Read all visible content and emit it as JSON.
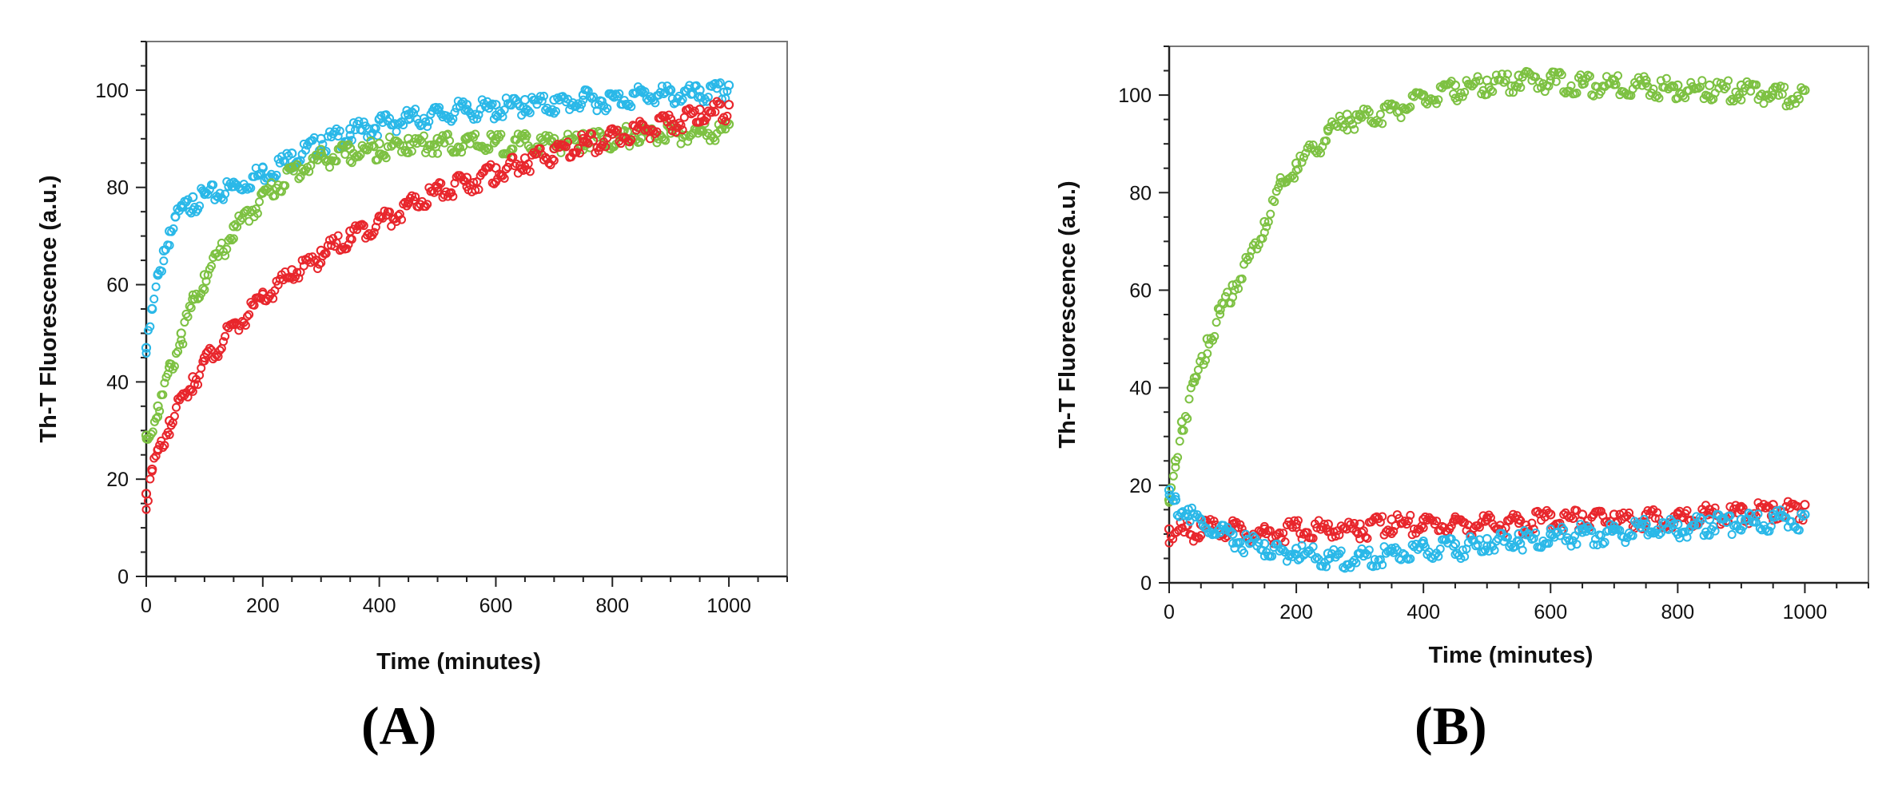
{
  "chart_data": [
    {
      "type": "scatter",
      "panel_label": "(A)",
      "xlabel": "Time (minutes)",
      "ylabel": "Th-T Fluorescence (a.u.)",
      "xlim": [
        0,
        1100
      ],
      "ylim": [
        0,
        110
      ],
      "xticks": [
        0,
        200,
        400,
        600,
        800,
        1000
      ],
      "yticks": [
        0,
        20,
        40,
        60,
        80,
        100
      ],
      "grid": false,
      "series": [
        {
          "color": "#2ab8e8",
          "x": [
            0,
            10,
            20,
            30,
            40,
            50,
            60,
            80,
            100,
            150,
            200,
            250,
            300,
            350,
            400,
            450,
            500,
            550,
            600,
            650,
            700,
            750,
            800,
            850,
            900,
            950,
            1000
          ],
          "y": [
            47,
            55,
            62,
            67,
            71,
            74,
            76,
            78,
            79,
            81,
            84,
            87,
            90,
            92,
            94,
            95,
            96,
            97,
            97,
            98,
            98,
            99,
            99,
            100,
            100,
            100,
            101
          ]
        },
        {
          "color": "#7dc142",
          "x": [
            0,
            20,
            40,
            60,
            80,
            100,
            150,
            200,
            250,
            300,
            350,
            400,
            450,
            500,
            550,
            600,
            650,
            700,
            750,
            800,
            850,
            900,
            950,
            1000
          ],
          "y": [
            29,
            35,
            43,
            50,
            57,
            62,
            72,
            79,
            84,
            87,
            88,
            89,
            90,
            90,
            90,
            90,
            90,
            90,
            91,
            91,
            92,
            92,
            92,
            93
          ]
        },
        {
          "color": "#e8262c",
          "x": [
            0,
            10,
            20,
            40,
            60,
            80,
            100,
            150,
            200,
            250,
            300,
            350,
            400,
            450,
            500,
            550,
            600,
            650,
            700,
            750,
            800,
            850,
            900,
            950,
            1000
          ],
          "y": [
            17,
            22,
            26,
            32,
            37,
            41,
            45,
            52,
            58,
            63,
            67,
            71,
            74,
            77,
            80,
            82,
            84,
            86,
            88,
            90,
            91,
            93,
            94,
            96,
            97
          ]
        }
      ]
    },
    {
      "type": "scatter",
      "panel_label": "(B)",
      "xlabel": "Time (minutes)",
      "ylabel": "Th-T Fluorescence (a.u.)",
      "xlim": [
        0,
        1100
      ],
      "ylim": [
        0,
        110
      ],
      "xticks": [
        0,
        200,
        400,
        600,
        800,
        1000
      ],
      "yticks": [
        0,
        20,
        40,
        60,
        80,
        100
      ],
      "grid": false,
      "series": [
        {
          "color": "#7dc142",
          "x": [
            0,
            10,
            20,
            40,
            60,
            80,
            100,
            150,
            175,
            200,
            250,
            280,
            300,
            350,
            400,
            450,
            500,
            550,
            600,
            650,
            700,
            750,
            800,
            850,
            900,
            950,
            1000
          ],
          "y": [
            17,
            25,
            33,
            42,
            50,
            56,
            61,
            74,
            82,
            86,
            93,
            96,
            96,
            98,
            100,
            102,
            103,
            104,
            104,
            103,
            103,
            103,
            102,
            102,
            102,
            101,
            101
          ]
        },
        {
          "color": "#e8262c",
          "x": [
            0,
            50,
            100,
            150,
            200,
            250,
            300,
            350,
            400,
            450,
            500,
            550,
            600,
            650,
            700,
            750,
            800,
            850,
            900,
            950,
            1000
          ],
          "y": [
            11,
            12,
            12,
            11,
            12,
            12,
            12,
            13,
            13,
            13,
            13,
            13,
            14,
            14,
            14,
            14,
            14,
            15,
            15,
            16,
            16
          ]
        },
        {
          "color": "#2ab8e8",
          "x": [
            0,
            10,
            30,
            50,
            80,
            100,
            150,
            200,
            250,
            300,
            350,
            400,
            450,
            500,
            550,
            600,
            650,
            700,
            750,
            800,
            850,
            900,
            950,
            1000
          ],
          "y": [
            19,
            17,
            15,
            13,
            11,
            10,
            8,
            7,
            6,
            6,
            7,
            8,
            8,
            9,
            10,
            10,
            11,
            11,
            12,
            12,
            13,
            13,
            14,
            14
          ]
        }
      ]
    }
  ]
}
